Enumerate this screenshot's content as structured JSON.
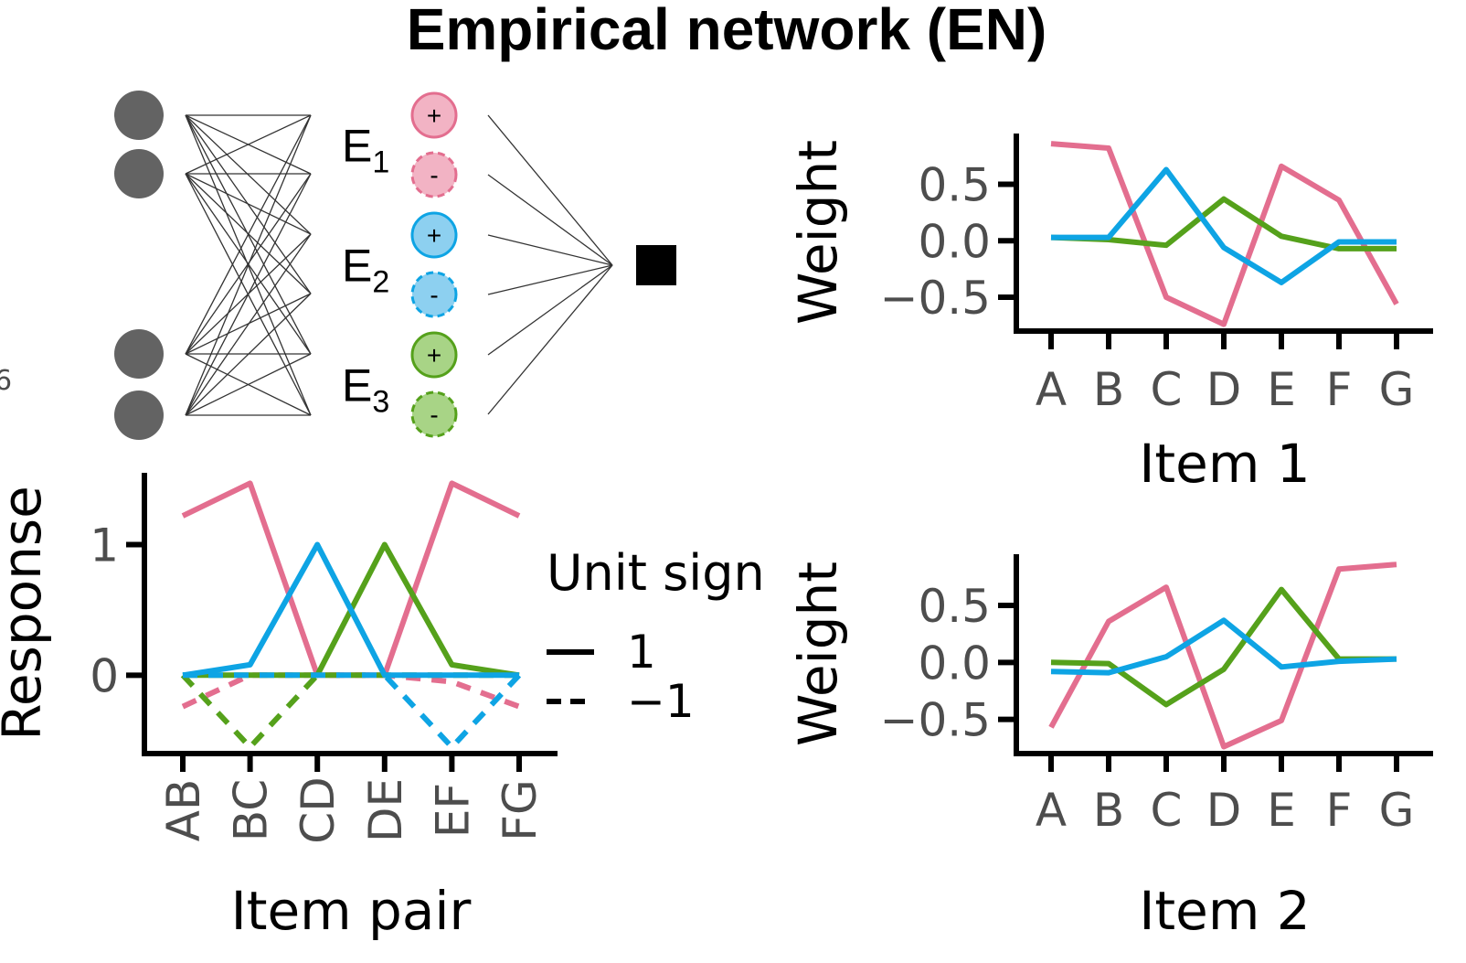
{
  "title": "Empirical network (EN)",
  "stray_label": "6",
  "colors": {
    "E1": "#e36e8f",
    "E2": "#0ea4e4",
    "E3": "#55a11b",
    "E1_fill": "#f2b3c4",
    "E2_fill": "#8dd0f0",
    "E3_fill": "#a8d486",
    "input": "#636363",
    "axis": "#000000"
  },
  "network": {
    "units": [
      {
        "label": "E",
        "sub": "1",
        "plus": "+",
        "minus": "-",
        "color_key": "E1"
      },
      {
        "label": "E",
        "sub": "2",
        "plus": "+",
        "minus": "-",
        "color_key": "E2"
      },
      {
        "label": "E",
        "sub": "3",
        "plus": "+",
        "minus": "-",
        "color_key": "E3"
      }
    ],
    "input_nodes": 4,
    "output_node": "square"
  },
  "chart_data": [
    {
      "id": "response",
      "type": "line",
      "xlabel": "Item pair",
      "ylabel": "Response",
      "categories": [
        "AB",
        "BC",
        "CD",
        "DE",
        "EF",
        "FG"
      ],
      "ylim": [
        -0.6,
        1.55
      ],
      "yticks": [
        {
          "v": 0,
          "label": "0"
        },
        {
          "v": 1,
          "label": "1"
        }
      ],
      "grid": false,
      "legend": {
        "title": "Unit sign",
        "position": "right",
        "entries": [
          {
            "label": "1",
            "style": "solid"
          },
          {
            "label": "−1",
            "style": "dashed"
          }
        ]
      },
      "series": [
        {
          "color_key": "E1",
          "style": "solid",
          "values": [
            1.22,
            1.47,
            0.0,
            0.0,
            1.47,
            1.22
          ]
        },
        {
          "color_key": "E1",
          "style": "dashed",
          "values": [
            -0.24,
            0.0,
            0.0,
            0.0,
            -0.05,
            -0.24
          ]
        },
        {
          "color_key": "E3",
          "style": "solid",
          "values": [
            0.0,
            0.0,
            0.0,
            1.0,
            0.08,
            0.0
          ]
        },
        {
          "color_key": "E3",
          "style": "dashed",
          "values": [
            0.0,
            -0.55,
            0.0,
            0.0,
            0.0,
            0.0
          ]
        },
        {
          "color_key": "E2",
          "style": "solid",
          "values": [
            0.0,
            0.08,
            1.0,
            0.0,
            0.0,
            0.0
          ]
        },
        {
          "color_key": "E2",
          "style": "dashed",
          "values": [
            0.0,
            0.0,
            0.0,
            0.0,
            -0.55,
            0.0
          ]
        }
      ]
    },
    {
      "id": "item1",
      "type": "line",
      "xlabel": "Item 1",
      "ylabel": "Weight",
      "categories": [
        "A",
        "B",
        "C",
        "D",
        "E",
        "F",
        "G"
      ],
      "ylim": [
        -0.8,
        0.95
      ],
      "yticks": [
        {
          "v": 0.5,
          "label": "0.5"
        },
        {
          "v": 0.0,
          "label": "0.0"
        },
        {
          "v": -0.5,
          "label": "−0.5"
        }
      ],
      "grid": false,
      "series": [
        {
          "color_key": "E1",
          "values": [
            0.86,
            0.82,
            -0.5,
            -0.74,
            0.66,
            0.36,
            -0.56
          ]
        },
        {
          "color_key": "E3",
          "values": [
            0.03,
            0.01,
            -0.04,
            0.37,
            0.04,
            -0.07,
            -0.07
          ]
        },
        {
          "color_key": "E2",
          "values": [
            0.03,
            0.03,
            0.63,
            -0.06,
            -0.37,
            -0.01,
            -0.01
          ]
        }
      ]
    },
    {
      "id": "item2",
      "type": "line",
      "xlabel": "Item 2",
      "ylabel": "Weight",
      "categories": [
        "A",
        "B",
        "C",
        "D",
        "E",
        "F",
        "G"
      ],
      "ylim": [
        -0.8,
        0.95
      ],
      "yticks": [
        {
          "v": 0.5,
          "label": "0.5"
        },
        {
          "v": 0.0,
          "label": "0.0"
        },
        {
          "v": -0.5,
          "label": "−0.5"
        }
      ],
      "grid": false,
      "series": [
        {
          "color_key": "E1",
          "values": [
            -0.57,
            0.36,
            0.66,
            -0.74,
            -0.51,
            0.82,
            0.86
          ]
        },
        {
          "color_key": "E3",
          "values": [
            0.0,
            -0.01,
            -0.37,
            -0.06,
            0.64,
            0.03,
            0.03
          ]
        },
        {
          "color_key": "E2",
          "values": [
            -0.08,
            -0.09,
            0.05,
            0.37,
            -0.04,
            0.01,
            0.03
          ]
        }
      ]
    }
  ]
}
